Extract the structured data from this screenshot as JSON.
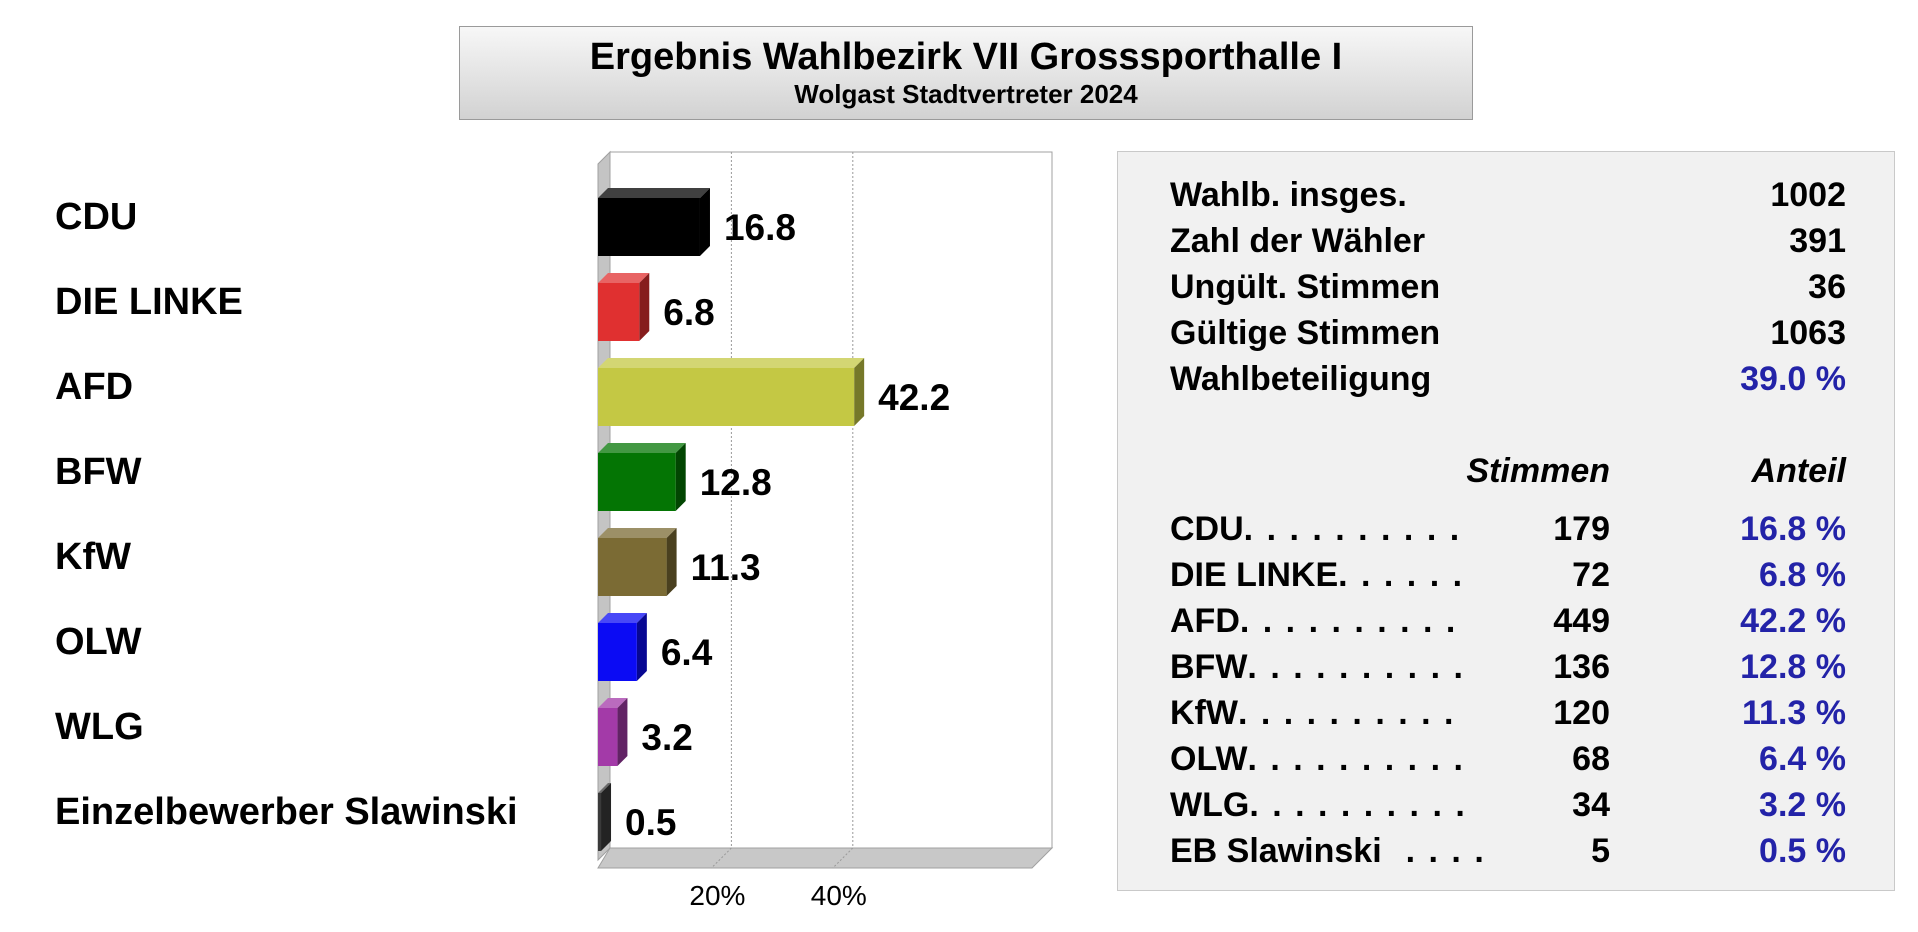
{
  "title": "Ergebnis Wahlbezirk VII Grosssporthalle I",
  "subtitle": "Wolgast Stadtvertreter 2024",
  "chart_data": {
    "type": "bar",
    "orientation": "horizontal",
    "categories": [
      "CDU",
      "DIE LINKE",
      "AFD",
      "BFW",
      "KfW",
      "OLW",
      "WLG",
      "Einzelbewerber Slawinski"
    ],
    "values": [
      16.8,
      6.8,
      42.2,
      12.8,
      11.3,
      6.4,
      3.2,
      0.5
    ],
    "value_labels": [
      "16.8",
      "6.8",
      "42.2",
      "12.8",
      "11.3",
      "6.4",
      "3.2",
      "0.5"
    ],
    "colors": [
      "#000000",
      "#e03030",
      "#c4c844",
      "#047504",
      "#7b6b34",
      "#0b0bf4",
      "#a33aa8",
      "#3a3a3a"
    ],
    "xlim": [
      0,
      75
    ],
    "x_ticks": [
      20,
      40
    ],
    "x_tick_labels": [
      "20%",
      "40%"
    ],
    "grid": true,
    "style": "3d"
  },
  "summary": [
    {
      "label": "Wahlb. insges.",
      "value": "1002"
    },
    {
      "label": "Zahl der Wähler",
      "value": "391"
    },
    {
      "label": "Ungült. Stimmen",
      "value": "36"
    },
    {
      "label": "Gültige Stimmen",
      "value": "1063"
    },
    {
      "label": "Wahlbeteiligung",
      "value": "39.0 %"
    }
  ],
  "results_header": {
    "stimmen": "Stimmen",
    "anteil": "Anteil"
  },
  "results": [
    {
      "party": "CDU",
      "dots": ". . . . . . . . . .",
      "stimmen": "179",
      "anteil": "16.8 %"
    },
    {
      "party": "DIE LINKE",
      "dots": ". . . . . .",
      "stimmen": "72",
      "anteil": "6.8 %"
    },
    {
      "party": "AFD",
      "dots": ". . . . . . . . . .",
      "stimmen": "449",
      "anteil": "42.2 %"
    },
    {
      "party": "BFW",
      "dots": ". . . . . . . . . .",
      "stimmen": "136",
      "anteil": "12.8 %"
    },
    {
      "party": "KfW",
      "dots": ". . . . . . . . . .",
      "stimmen": "120",
      "anteil": "11.3 %"
    },
    {
      "party": "OLW",
      "dots": ". . . . . . . . . .",
      "stimmen": "68",
      "anteil": "6.4 %"
    },
    {
      "party": "WLG",
      "dots": ". . . . . . . . . .",
      "stimmen": "34",
      "anteil": "3.2 %"
    },
    {
      "party": "EB Slawinski",
      "dots": ". . . .",
      "stimmen": "5",
      "anteil": "0.5 %"
    }
  ]
}
